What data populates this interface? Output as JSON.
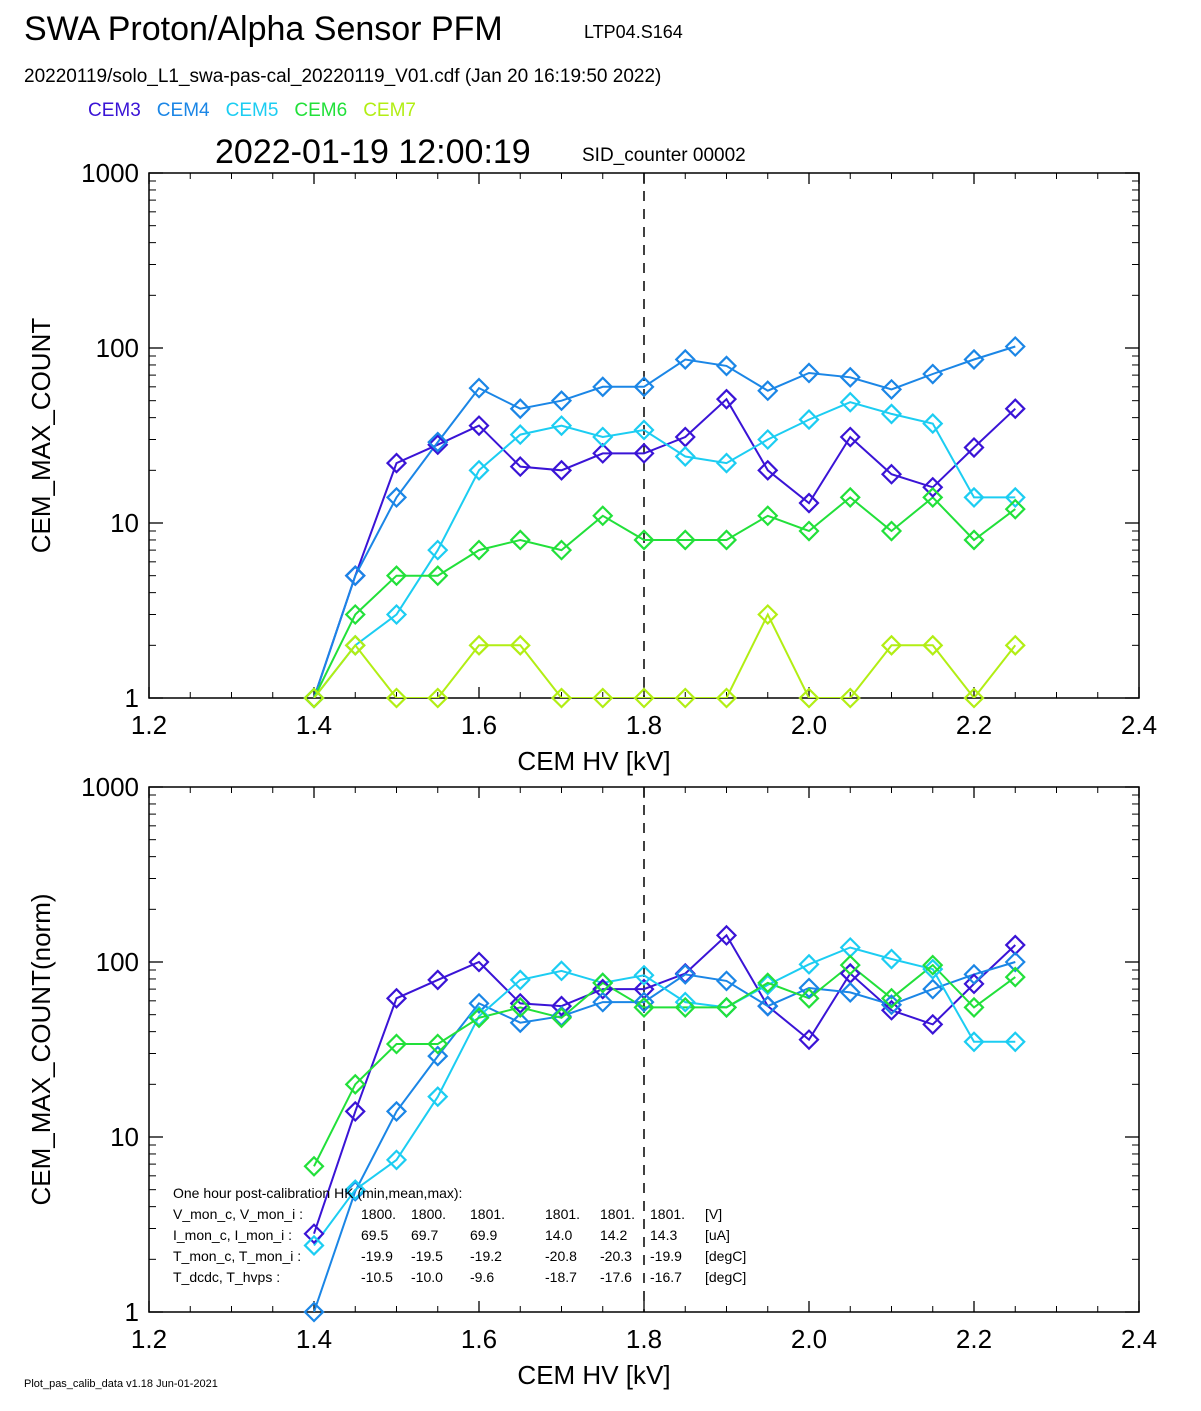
{
  "header": {
    "title": "SWA Proton/Alpha Sensor PFM",
    "run_id": "LTP04.S164",
    "subtitle": "20220119/solo_L1_swa-pas-cal_20220119_V01.cdf  (Jan 20 16:19:50 2022)",
    "timestamp": "2022-01-19 12:00:19",
    "sid": "SID_counter 00002"
  },
  "legend": [
    {
      "label": "CEM3",
      "color": "#3a14d6"
    },
    {
      "label": "CEM4",
      "color": "#1b86e6"
    },
    {
      "label": "CEM5",
      "color": "#1ccdf2"
    },
    {
      "label": "CEM6",
      "color": "#22e03a"
    },
    {
      "label": "CEM7",
      "color": "#b2ee14"
    }
  ],
  "footer": "Plot_pas_calib_data v1.18 Jun-01-2021",
  "hk": {
    "heading": "One hour post-calibration HK (min,mean,max):",
    "rows": [
      {
        "label": "V_mon_c, V_mon_i :",
        "v1": "1800.",
        "v2": "1800.",
        "v3": "1801.",
        "v4": "1801.",
        "v5": "1801.",
        "v6": "1801.",
        "unit": "[V]"
      },
      {
        "label": "I_mon_c, I_mon_i :",
        "v1": "69.5",
        "v2": "69.7",
        "v3": "69.9",
        "v4": "14.0",
        "v5": "14.2",
        "v6": "14.3",
        "unit": "[uA]"
      },
      {
        "label": "T_mon_c, T_mon_i :",
        "v1": "-19.9",
        "v2": "-19.5",
        "v3": "-19.2",
        "v4": "-20.8",
        "v5": "-20.3",
        "v6": "-19.9",
        "unit": "[degC]"
      },
      {
        "label": "T_dcdc,    T_hvps :",
        "v1": "-10.5",
        "v2": "-10.0",
        "v3": "-9.6",
        "v4": "-18.7",
        "v5": "-17.6",
        "v6": "-16.7",
        "unit": "[degC]"
      }
    ]
  },
  "chart_data": [
    {
      "type": "line",
      "xlabel": "CEM HV [kV]",
      "ylabel": "CEM_MAX_COUNT",
      "xlim": [
        1.2,
        2.4
      ],
      "ylim": [
        1,
        1000
      ],
      "yscale": "log",
      "xticks": [
        "1.2",
        "1.4",
        "1.6",
        "1.8",
        "2.0",
        "2.2",
        "2.4"
      ],
      "yticks": [
        "1",
        "10",
        "100",
        "1000"
      ],
      "vline": 1.8,
      "marker": "diamond",
      "x": [
        1.4,
        1.45,
        1.5,
        1.55,
        1.6,
        1.65,
        1.7,
        1.75,
        1.8,
        1.85,
        1.9,
        1.95,
        2.0,
        2.05,
        2.1,
        2.15,
        2.2,
        2.25
      ],
      "series": [
        {
          "name": "CEM3",
          "color": "#3a14d6",
          "values": [
            1,
            5,
            22,
            28,
            36,
            21,
            20,
            25,
            25,
            31,
            51,
            20,
            13,
            31,
            19,
            16,
            27,
            45
          ]
        },
        {
          "name": "CEM4",
          "color": "#1b86e6",
          "values": [
            1,
            5,
            14,
            29,
            59,
            45,
            50,
            60,
            60,
            86,
            79,
            57,
            72,
            68,
            58,
            71,
            86,
            102
          ]
        },
        {
          "name": "CEM5",
          "color": "#1ccdf2",
          "values": [
            1,
            2,
            3,
            7,
            20,
            32,
            36,
            31,
            34,
            24,
            22,
            30,
            39,
            49,
            42,
            37,
            14,
            14
          ]
        },
        {
          "name": "CEM6",
          "color": "#22e03a",
          "values": [
            1,
            3,
            5,
            5,
            7,
            8,
            7,
            11,
            8,
            8,
            8,
            11,
            9,
            14,
            9,
            14,
            8,
            12
          ]
        },
        {
          "name": "CEM7",
          "color": "#b2ee14",
          "values": [
            1,
            2,
            1,
            1,
            2,
            2,
            1,
            1,
            1,
            1,
            1,
            3,
            1,
            1,
            2,
            2,
            1,
            2
          ]
        }
      ]
    },
    {
      "type": "line",
      "xlabel": "CEM HV [kV]",
      "ylabel": "CEM_MAX_COUNT(norm)",
      "xlim": [
        1.2,
        2.4
      ],
      "ylim": [
        1,
        1000
      ],
      "yscale": "log",
      "xticks": [
        "1.2",
        "1.4",
        "1.6",
        "1.8",
        "2.0",
        "2.2",
        "2.4"
      ],
      "yticks": [
        "1",
        "10",
        "100",
        "1000"
      ],
      "vline": 1.8,
      "marker": "diamond",
      "x": [
        1.4,
        1.45,
        1.5,
        1.55,
        1.6,
        1.65,
        1.7,
        1.75,
        1.8,
        1.85,
        1.9,
        1.95,
        2.0,
        2.05,
        2.1,
        2.15,
        2.2,
        2.25
      ],
      "series": [
        {
          "name": "CEM3",
          "color": "#3a14d6",
          "values": [
            2.8,
            14,
            62,
            79,
            100,
            58,
            56,
            70,
            70,
            86,
            142,
            56,
            36,
            86,
            53,
            44,
            75,
            125
          ]
        },
        {
          "name": "CEM4",
          "color": "#1b86e6",
          "values": [
            1,
            4.9,
            14,
            29,
            58,
            45,
            49,
            59,
            59,
            85,
            78,
            56,
            71,
            67,
            57,
            70,
            85,
            100
          ]
        },
        {
          "name": "CEM5",
          "color": "#1ccdf2",
          "values": [
            2.4,
            5,
            7.4,
            17,
            49,
            79,
            89,
            76,
            84,
            59,
            55,
            74,
            97,
            121,
            104,
            91,
            35,
            35
          ]
        },
        {
          "name": "CEM6",
          "color": "#22e03a",
          "values": [
            6.8,
            20,
            34,
            34,
            48,
            55,
            48,
            76,
            55,
            55,
            55,
            76,
            62,
            96,
            62,
            96,
            55,
            82
          ]
        }
      ]
    }
  ]
}
